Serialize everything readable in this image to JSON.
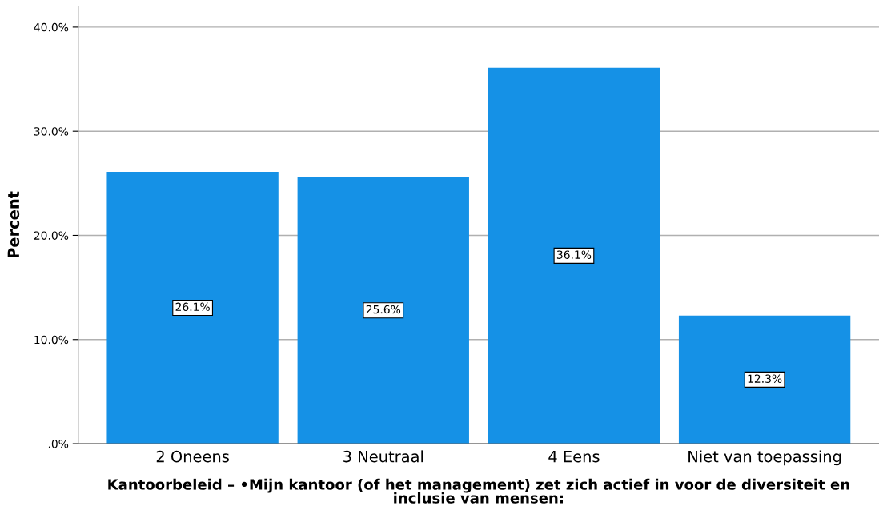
{
  "chart_data": {
    "type": "bar",
    "categories": [
      "2 Oneens",
      "3 Neutraal",
      "4 Eens",
      "Niet van toepassing"
    ],
    "values": [
      26.1,
      25.6,
      36.1,
      12.3
    ],
    "value_labels": [
      "26.1%",
      "25.6%",
      "36.1%",
      "12.3%"
    ],
    "color": "#1591e6",
    "ylabel": "Percent",
    "xlabel": "Kantoorbeleid – •Mijn kantoor (of het management) zet zich actief in voor de diversiteit en\ninclusie van mensen:",
    "ylim": [
      0,
      42
    ],
    "yticks": [
      {
        "value": 0,
        "label": ".0%"
      },
      {
        "value": 10,
        "label": "10.0%"
      },
      {
        "value": 20,
        "label": "20.0%"
      },
      {
        "value": 30,
        "label": "30.0%"
      },
      {
        "value": 40,
        "label": "40.0%"
      }
    ],
    "grid": "y"
  }
}
